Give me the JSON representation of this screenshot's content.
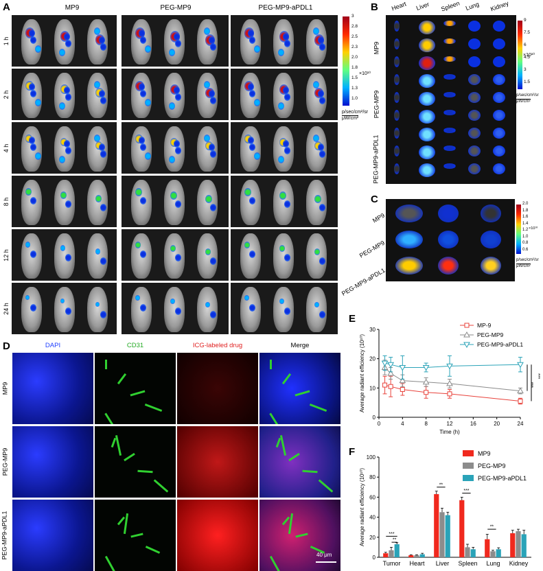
{
  "panel_labels": {
    "a": "A",
    "b": "B",
    "c": "C",
    "d": "D",
    "e": "E",
    "f": "F"
  },
  "panelA": {
    "columns": [
      "MP9",
      "PEG-MP9",
      "PEG-MP9-aPDL1"
    ],
    "rows": [
      "1 h",
      "2 h",
      "4 h",
      "8 h",
      "12 h",
      "24 h"
    ],
    "colorbar": {
      "ticks": [
        "3",
        "2.8",
        "2.5",
        "2.3",
        "2.0",
        "1.8",
        "1.5",
        "1.3",
        "1.0"
      ],
      "exp": "×10¹⁰",
      "unit1": "p/sec/cm²/sr",
      "unit2": "μW/cm²"
    }
  },
  "panelB": {
    "organs": [
      "Heart",
      "Liver",
      "Spleen",
      "Lung",
      "Kidney"
    ],
    "groups": [
      "MP9",
      "PEG-MP9",
      "PEG-MP9-aPDL1"
    ],
    "colorbar": {
      "ticks": [
        "9",
        "7.5",
        "6",
        "4.5",
        "3",
        "1.5"
      ],
      "exp": "×10¹⁰",
      "unit1": "p/sec/cm²/sr",
      "unit2": "μW/cm²"
    }
  },
  "panelC": {
    "groups": [
      "MP9",
      "PEG-MP9",
      "PEG-MP9-aPDL1"
    ],
    "colorbar": {
      "ticks": [
        "2.0",
        "1.8",
        "1.6",
        "1.4",
        "1.2",
        "1.0",
        "0.8",
        "0.6"
      ],
      "exp": "×10¹⁰",
      "unit1": "p/sec/cm²/sr",
      "unit2": "μW/cm²"
    }
  },
  "panelD": {
    "columns": [
      "DAPI",
      "CD31",
      "ICG-labeled drug",
      "Merge"
    ],
    "rows": [
      "MP9",
      "PEG-MP9",
      "PEG-MP9-aPDL1"
    ],
    "scale_bar": "40 μm"
  },
  "chart_data": [
    {
      "type": "line",
      "ylabel": "Average radiant efficiency (10¹⁰)",
      "xlabel": "Time (h)",
      "x": [
        1,
        2,
        4,
        8,
        12,
        24
      ],
      "xlim": [
        0,
        24
      ],
      "ylim": [
        0,
        30
      ],
      "xticks": [
        "0",
        "4",
        "8",
        "12",
        "16",
        "20",
        "24"
      ],
      "yticks": [
        "0",
        "10",
        "20",
        "30"
      ],
      "series": [
        {
          "name": "MP-9",
          "values": [
            11,
            10.5,
            9.5,
            8.5,
            8,
            5.5
          ],
          "err": [
            3,
            3.5,
            2,
            2,
            1.5,
            1
          ],
          "color": "#e8413a",
          "marker": "square"
        },
        {
          "name": "PEG-MP9",
          "values": [
            17,
            15,
            12.5,
            12,
            11.5,
            9
          ],
          "err": [
            2.5,
            2,
            2,
            1.5,
            1.5,
            1
          ],
          "color": "#8a8a8a",
          "marker": "triangle-up"
        },
        {
          "name": "PEG-MP9-aPDL1",
          "values": [
            18.5,
            18,
            17,
            17,
            17.5,
            18
          ],
          "err": [
            2.5,
            2.5,
            4,
            1.5,
            3.5,
            2.5
          ],
          "color": "#2aa3b8",
          "marker": "triangle-down"
        }
      ],
      "significance": [
        "***",
        "***"
      ]
    },
    {
      "type": "bar",
      "ylabel": "Average radiant efficiency (10¹⁰)",
      "categories": [
        "Tumor",
        "Heart",
        "Liver",
        "Spleen",
        "Lung",
        "Kidney"
      ],
      "ylim": [
        0,
        100
      ],
      "yticks": [
        "0",
        "20",
        "40",
        "60",
        "80",
        "100"
      ],
      "series": [
        {
          "name": "MP9",
          "values": [
            4,
            2,
            63,
            57,
            18,
            24
          ],
          "err": [
            1,
            0.5,
            3,
            3,
            5,
            3
          ],
          "color": "#f0291e"
        },
        {
          "name": "PEG-MP9",
          "values": [
            7,
            2,
            45,
            10,
            6,
            26
          ],
          "err": [
            3,
            0.5,
            4,
            3,
            1,
            2
          ],
          "color": "#8c8c8c"
        },
        {
          "name": "PEG-MP9-aPDL1",
          "values": [
            13,
            3,
            42,
            8,
            8,
            23
          ],
          "err": [
            1.5,
            1,
            3,
            2,
            1.5,
            4
          ],
          "color": "#2aa3b8"
        }
      ],
      "significance": [
        {
          "category": "Tumor",
          "label": "***"
        },
        {
          "category": "Tumor",
          "label": "**"
        },
        {
          "category": "Liver",
          "label": "**"
        },
        {
          "category": "Spleen",
          "label": "***"
        },
        {
          "category": "Lung",
          "label": "**"
        }
      ]
    }
  ]
}
